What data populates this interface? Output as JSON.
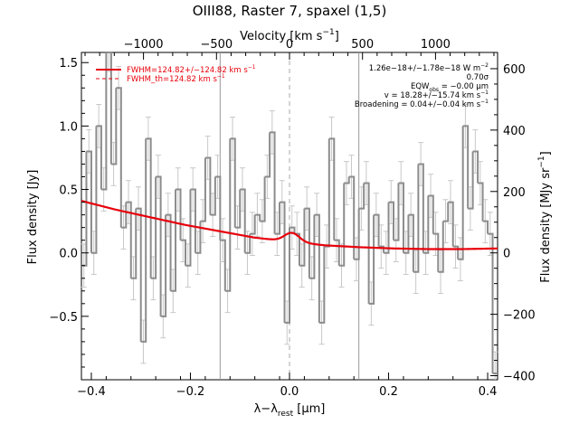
{
  "chart_data": {
    "type": "line",
    "title": "OIII88, Raster 7, spaxel (1,5)",
    "x_axis": {
      "label_main": "λ−λ",
      "label_sub": "rest",
      "label_unit": " [μm]",
      "range": [
        -0.42,
        0.42
      ],
      "ticks": [
        -0.4,
        -0.2,
        0.0,
        0.2,
        0.4
      ],
      "tick_labels": [
        "−0.4",
        "−0.2",
        "0.0",
        "0.2",
        "0.4"
      ]
    },
    "y_axis_left": {
      "label": "Flux density [Jy]",
      "range": [
        -1.0,
        1.58
      ],
      "ticks": [
        -0.5,
        0.0,
        0.5,
        1.0,
        1.5
      ],
      "tick_labels": [
        "−0.5",
        "0.0",
        "0.5",
        "1.0",
        "1.5"
      ]
    },
    "top_axis": {
      "label_main": "Velocity [km s",
      "label_sup": "−1",
      "label_end": "]",
      "ticks_kms": [
        -1000,
        -500,
        0,
        500,
        1000
      ],
      "tick_labels": [
        "−1000",
        "−500",
        "0",
        "500",
        "1000"
      ],
      "rest_wavelength_um": 88.36
    },
    "y_axis_right": {
      "label_main": "Flux density [MJy sr",
      "label_sup": "−1",
      "label_end": "]",
      "ticks": [
        -400,
        -200,
        0,
        200,
        400,
        600
      ],
      "tick_labels": [
        "−400",
        "−200",
        "0",
        "200",
        "400",
        "600"
      ],
      "jy_per_unit": 0.00242
    },
    "legend": {
      "placement": "top-left",
      "items": [
        {
          "text_main": "FWHM=124.82+/−124.82 km s",
          "text_sup": "−1",
          "style": "solid",
          "color": "#e8000b"
        },
        {
          "text_main": "FWHM_th=124.82 km s",
          "text_sup": "−1",
          "style": "dashed",
          "color": "#e8000b"
        }
      ]
    },
    "annotations": [
      {
        "main": "1.26e−18+/−1.78e−18 W m",
        "sup": "−2",
        "end": ""
      },
      {
        "main": "0.70σ",
        "sup": "",
        "end": ""
      },
      {
        "main": "EQW",
        "sub": "obs",
        "end": " = −0.00 μm"
      },
      {
        "main": "v = 18.28+/−15.74 km s",
        "sup": "−1",
        "end": ""
      },
      {
        "main": "Broadening = 0.04+/−0.04 km s",
        "sup": "−1",
        "end": ""
      }
    ],
    "vertical_lines": [
      {
        "x": -0.14,
        "style": "solid",
        "color": "#999999"
      },
      {
        "x": 0.0,
        "style": "dashed",
        "color": "#aaaaaa"
      },
      {
        "x": 0.14,
        "style": "solid",
        "color": "#999999"
      }
    ],
    "spectrum": {
      "name": "data",
      "color": "#8c8c8c",
      "errorbar_color": "#c8c8c8",
      "x": [
        -0.42,
        -0.41,
        -0.4,
        -0.39,
        -0.38,
        -0.37,
        -0.36,
        -0.35,
        -0.34,
        -0.33,
        -0.32,
        -0.31,
        -0.3,
        -0.29,
        -0.28,
        -0.27,
        -0.26,
        -0.25,
        -0.24,
        -0.23,
        -0.22,
        -0.21,
        -0.2,
        -0.19,
        -0.18,
        -0.17,
        -0.16,
        -0.15,
        -0.14,
        -0.13,
        -0.12,
        -0.11,
        -0.1,
        -0.09,
        -0.08,
        -0.07,
        -0.06,
        -0.05,
        -0.04,
        -0.03,
        -0.02,
        -0.01,
        0.0,
        0.01,
        0.02,
        0.03,
        0.04,
        0.05,
        0.06,
        0.07,
        0.08,
        0.09,
        0.1,
        0.11,
        0.12,
        0.13,
        0.14,
        0.15,
        0.16,
        0.17,
        0.18,
        0.19,
        0.2,
        0.21,
        0.22,
        0.23,
        0.24,
        0.25,
        0.26,
        0.27,
        0.28,
        0.29,
        0.3,
        0.31,
        0.32,
        0.33,
        0.34,
        0.35,
        0.36,
        0.37,
        0.38,
        0.39,
        0.4,
        0.41
      ],
      "y": [
        -0.1,
        0.8,
        0.0,
        1.0,
        0.5,
        1.6,
        0.7,
        1.3,
        0.2,
        0.4,
        -0.2,
        0.35,
        -0.7,
        0.9,
        -0.2,
        0.6,
        -0.5,
        0.3,
        -0.3,
        0.5,
        0.1,
        -0.1,
        0.5,
        0.0,
        0.25,
        0.75,
        0.3,
        0.6,
        0.1,
        -0.3,
        0.9,
        0.2,
        0.5,
        0.0,
        0.15,
        0.3,
        0.25,
        0.6,
        0.95,
        0.15,
        0.4,
        -0.55,
        0.2,
        0.15,
        -0.1,
        0.35,
        -0.2,
        0.3,
        -0.55,
        0.05,
        0.9,
        0.1,
        -0.1,
        0.55,
        0.6,
        -0.05,
        0.35,
        0.55,
        -0.4,
        0.3,
        0.05,
        0.0,
        0.4,
        0.1,
        0.55,
        0.0,
        0.3,
        -0.15,
        0.7,
        0.0,
        0.45,
        0.15,
        -0.15,
        0.25,
        0.4,
        0.05,
        -0.05,
        1.0,
        0.35,
        0.8,
        0.55,
        0.25,
        0.15,
        -0.95
      ],
      "error": 0.17
    },
    "fit": {
      "name": "fit",
      "color": "#e8000b",
      "baseline_x": [
        -0.42,
        -0.35,
        -0.28,
        -0.21,
        -0.14,
        -0.07,
        0.0,
        0.07,
        0.14,
        0.21,
        0.28,
        0.35,
        0.42
      ],
      "baseline_y": [
        0.41,
        0.34,
        0.28,
        0.22,
        0.17,
        0.12,
        0.09,
        0.06,
        0.045,
        0.035,
        0.03,
        0.03,
        0.035
      ],
      "gaussian": {
        "center": 0.005,
        "amplitude": 0.07,
        "sigma": 0.015
      }
    }
  }
}
